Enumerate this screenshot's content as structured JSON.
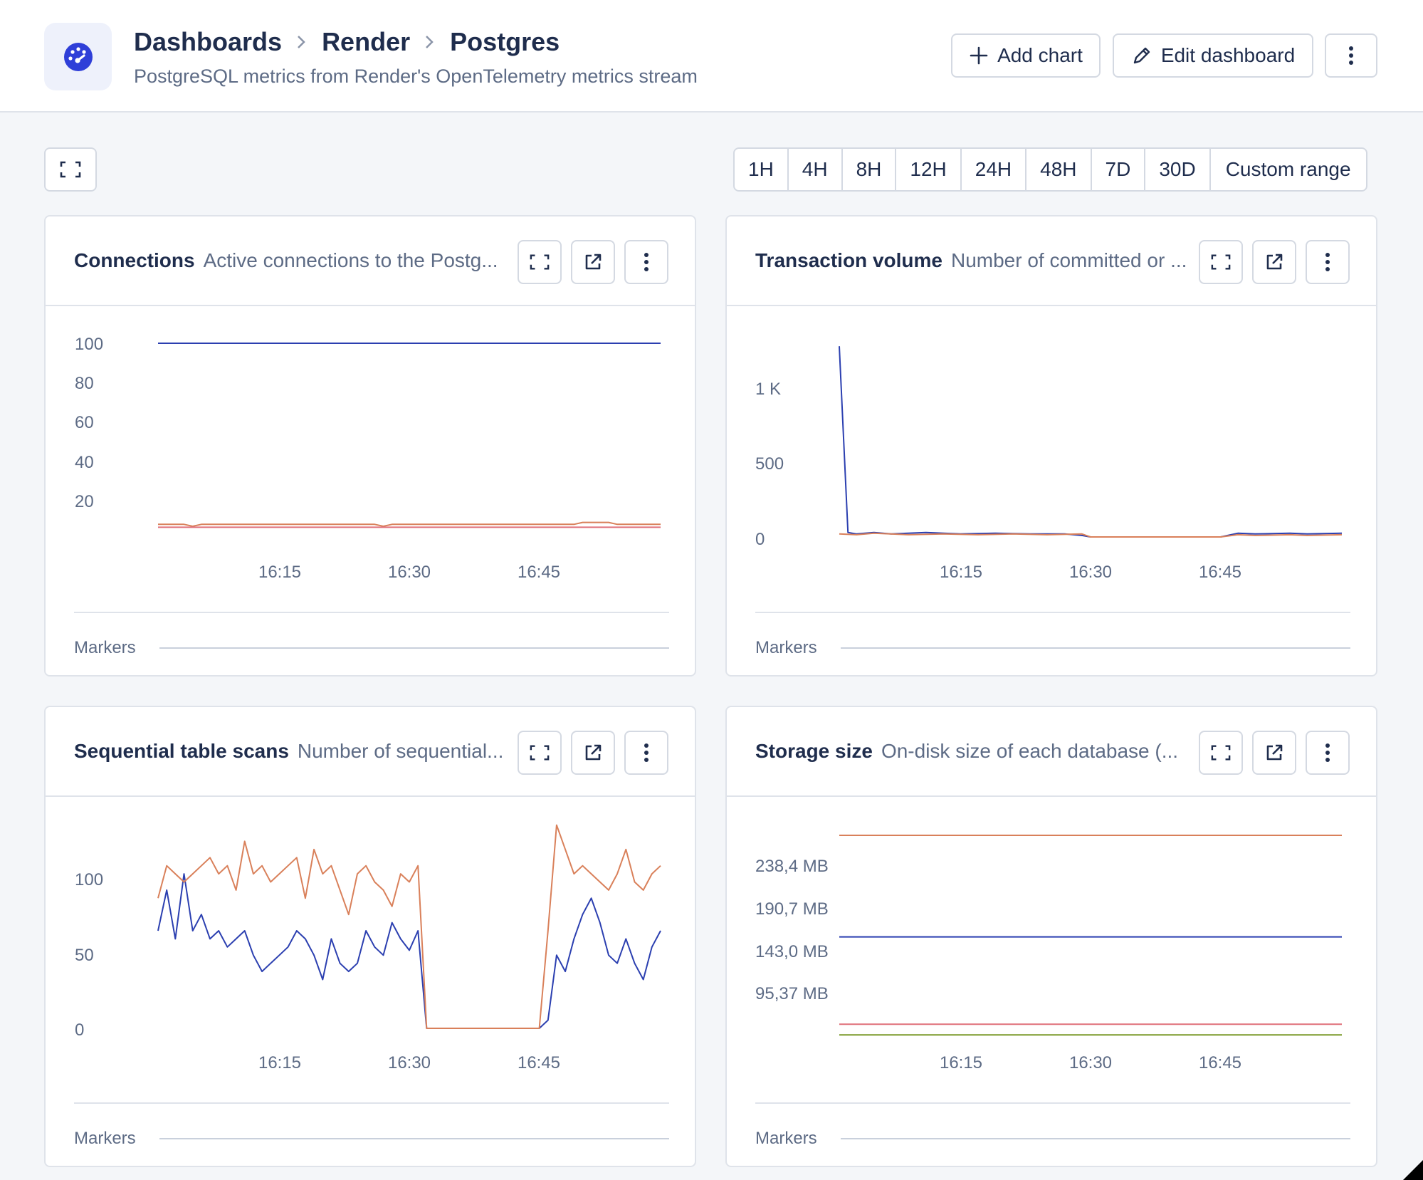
{
  "header": {
    "breadcrumb": [
      "Dashboards",
      "Render",
      "Postgres"
    ],
    "subtitle": "PostgreSQL metrics from Render's OpenTelemetry metrics stream",
    "add_chart_label": "Add chart",
    "edit_dashboard_label": "Edit dashboard",
    "app_icon": "speedometer-icon"
  },
  "time_ranges": [
    "1H",
    "4H",
    "8H",
    "12H",
    "24H",
    "48H",
    "7D",
    "30D",
    "Custom range"
  ],
  "panels": [
    {
      "title": "Connections",
      "description": "Active connections to the Postg...",
      "markers_label": "Markers"
    },
    {
      "title": "Transaction volume",
      "description": "Number of committed or ...",
      "markers_label": "Markers"
    },
    {
      "title": "Sequential table scans",
      "description": "Number of sequential...",
      "markers_label": "Markers"
    },
    {
      "title": "Storage size",
      "description": "On-disk size of each database (...",
      "markers_label": "Markers"
    }
  ],
  "colors": {
    "blue": "#2b3fb0",
    "orange": "#d9805a",
    "pink": "#e0707a",
    "olive": "#7a9a2a"
  },
  "chart_data": [
    {
      "type": "line",
      "xticks": [
        "16:15",
        "16:30",
        "16:45"
      ],
      "ytick_labels": [
        "100",
        "80",
        "60",
        "40",
        "20"
      ],
      "ylim": [
        0,
        100
      ],
      "series": [
        {
          "color": "#2b3fb0",
          "x": [
            0,
            58
          ],
          "y": [
            100,
            100
          ]
        },
        {
          "color": "#d9805a",
          "x": [
            0,
            3,
            4,
            5,
            25,
            26,
            27,
            48,
            49,
            50,
            52,
            53,
            54,
            55,
            56,
            58
          ],
          "y": [
            6.5,
            6.5,
            5.5,
            6.5,
            6.5,
            5.5,
            6.5,
            6.5,
            7.5,
            7.5,
            7.5,
            6.5,
            6.5,
            6.5,
            6.5,
            6.5
          ]
        },
        {
          "color": "#e0707a",
          "x": [
            0,
            58
          ],
          "y": [
            5,
            5
          ]
        }
      ]
    },
    {
      "type": "line",
      "xticks": [
        "16:15",
        "16:30",
        "16:45"
      ],
      "ytick_labels": [
        "1 K",
        "500",
        "0"
      ],
      "ylim": [
        0,
        1300
      ],
      "series": [
        {
          "color": "#2b3fb0",
          "x": [
            0,
            1,
            2,
            4,
            6,
            10,
            14,
            18,
            22,
            26,
            28,
            29,
            30,
            44,
            46,
            48,
            52,
            54,
            58
          ],
          "y": [
            1280,
            30,
            20,
            30,
            20,
            30,
            20,
            25,
            20,
            20,
            10,
            0,
            0,
            0,
            25,
            20,
            25,
            20,
            25
          ]
        },
        {
          "color": "#d9805a",
          "x": [
            0,
            2,
            4,
            8,
            12,
            16,
            20,
            24,
            28,
            29,
            30,
            44,
            46,
            48,
            52,
            54,
            58
          ],
          "y": [
            20,
            15,
            25,
            15,
            20,
            15,
            20,
            15,
            20,
            0,
            0,
            0,
            15,
            10,
            15,
            10,
            15
          ]
        }
      ]
    },
    {
      "type": "line",
      "xticks": [
        "16:15",
        "16:30",
        "16:45"
      ],
      "ytick_labels": [
        "100",
        "50",
        "0"
      ],
      "ylim": [
        0,
        120
      ],
      "series": [
        {
          "color": "#2b3fb0",
          "x": [
            0,
            1,
            2,
            3,
            4,
            5,
            6,
            7,
            8,
            9,
            10,
            11,
            12,
            13,
            14,
            15,
            16,
            17,
            18,
            19,
            20,
            21,
            22,
            23,
            24,
            25,
            26,
            27,
            28,
            29,
            30,
            31,
            32,
            33,
            34,
            35,
            36,
            37,
            38,
            39,
            40,
            41,
            42,
            43,
            44,
            45,
            46,
            47,
            48,
            49,
            50,
            51,
            52,
            53,
            54,
            55,
            56,
            57,
            58
          ],
          "y": [
            60,
            85,
            55,
            95,
            60,
            70,
            55,
            60,
            50,
            55,
            60,
            45,
            35,
            40,
            45,
            50,
            60,
            55,
            45,
            30,
            55,
            40,
            35,
            40,
            60,
            50,
            45,
            65,
            55,
            48,
            60,
            0,
            0,
            0,
            0,
            0,
            0,
            0,
            0,
            0,
            0,
            0,
            0,
            0,
            0,
            5,
            45,
            35,
            55,
            70,
            80,
            65,
            45,
            40,
            55,
            40,
            30,
            50,
            60
          ]
        },
        {
          "color": "#d9805a",
          "x": [
            0,
            1,
            2,
            3,
            4,
            5,
            6,
            7,
            8,
            9,
            10,
            11,
            12,
            13,
            14,
            15,
            16,
            17,
            18,
            19,
            20,
            21,
            22,
            23,
            24,
            25,
            26,
            27,
            28,
            29,
            30,
            31,
            32,
            33,
            34,
            35,
            36,
            37,
            38,
            39,
            40,
            41,
            42,
            43,
            44,
            45,
            46,
            47,
            48,
            49,
            50,
            51,
            52,
            53,
            54,
            55,
            56,
            57,
            58
          ],
          "y": [
            80,
            100,
            95,
            90,
            95,
            100,
            105,
            95,
            100,
            85,
            115,
            95,
            100,
            90,
            95,
            100,
            105,
            80,
            110,
            95,
            100,
            85,
            70,
            95,
            100,
            90,
            85,
            75,
            95,
            90,
            100,
            0,
            0,
            0,
            0,
            0,
            0,
            0,
            0,
            0,
            0,
            0,
            0,
            0,
            0,
            60,
            125,
            110,
            95,
            100,
            95,
            90,
            85,
            95,
            110,
            90,
            85,
            95,
            100
          ]
        }
      ]
    },
    {
      "type": "line",
      "xticks": [
        "16:15",
        "16:30",
        "16:45"
      ],
      "ytick_labels": [
        "238,4 MB",
        "190,7 MB",
        "143,0 MB",
        "95,37 MB"
      ],
      "series": [
        {
          "color": "#d9805a",
          "x": [
            0,
            58
          ],
          "y": [
            272,
            272
          ]
        },
        {
          "color": "#2b3fb0",
          "x": [
            0,
            58
          ],
          "y": [
            158,
            158
          ]
        },
        {
          "color": "#e0707a",
          "x": [
            0,
            58
          ],
          "y": [
            60,
            60
          ]
        },
        {
          "color": "#7a9a2a",
          "x": [
            0,
            58
          ],
          "y": [
            48,
            48
          ]
        }
      ]
    }
  ]
}
